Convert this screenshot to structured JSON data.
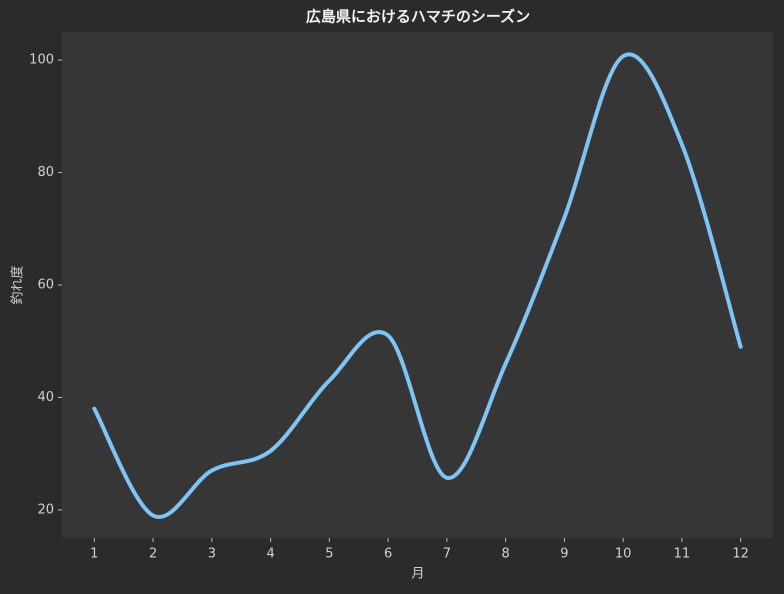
{
  "chart_data": {
    "type": "line",
    "title": "広島県におけるハマチのシーズン",
    "x_label": "月",
    "y_label": "釣れ度",
    "x": [
      1,
      2,
      3,
      4,
      5,
      6,
      7,
      8,
      9,
      10,
      11,
      12
    ],
    "values": [
      38,
      19,
      27,
      30.5,
      43,
      51,
      25.7,
      46,
      72,
      100.7,
      85,
      49
    ],
    "color": "#7ec4f5",
    "xlim": [
      0.45,
      12.55
    ],
    "xticks": [
      1,
      2,
      3,
      4,
      5,
      6,
      7,
      8,
      9,
      10,
      11,
      12
    ],
    "ylim": [
      15,
      105
    ],
    "yticks": [
      20,
      40,
      60,
      80,
      100
    ],
    "grid": false,
    "smooth": true
  }
}
